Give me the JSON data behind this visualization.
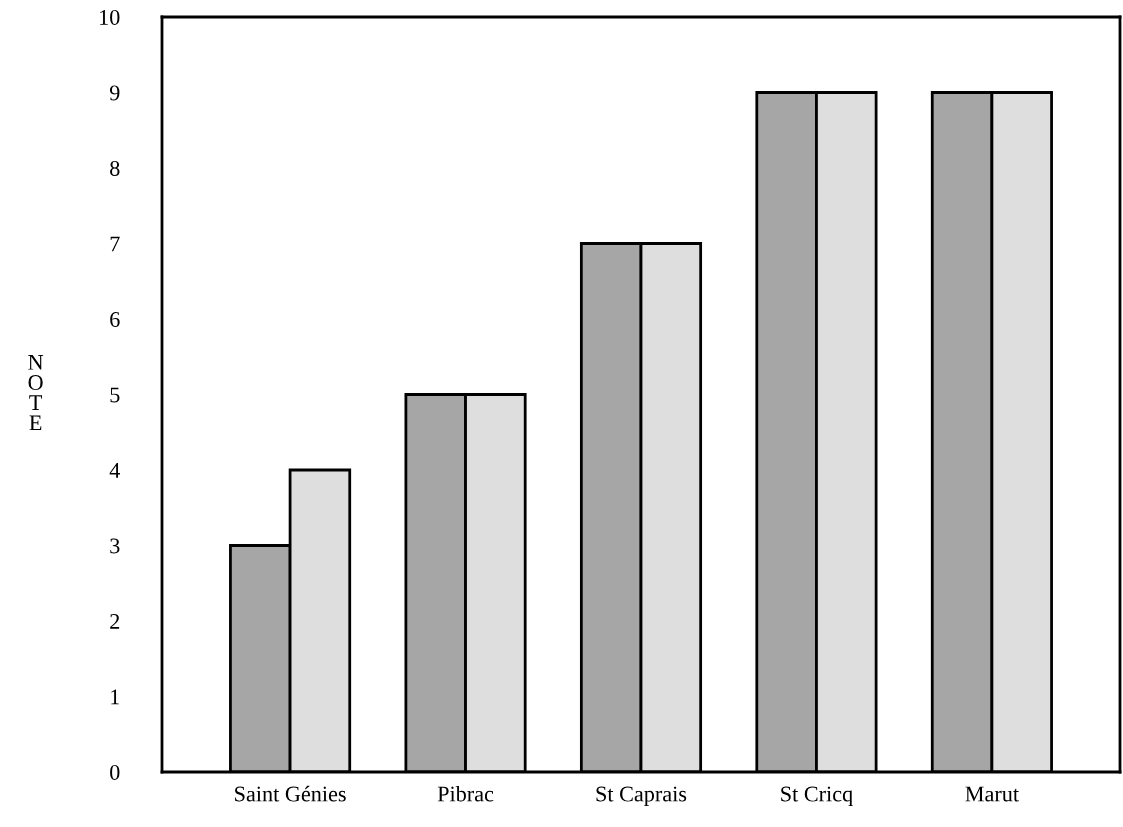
{
  "chart_data": {
    "type": "bar",
    "ylabel": "NOTE",
    "categories": [
      "Saint Génies",
      "Pibrac",
      "St Caprais",
      "St Cricq",
      "Marut"
    ],
    "series": [
      {
        "color": "#a6a6a6",
        "values": [
          3,
          5,
          7,
          9,
          9
        ]
      },
      {
        "color": "#dedede",
        "values": [
          4,
          5,
          7,
          9,
          9
        ]
      }
    ],
    "ylim": [
      0,
      10
    ],
    "yticks": [
      0,
      1,
      2,
      3,
      4,
      5,
      6,
      7,
      8,
      9,
      10
    ],
    "grid": false
  }
}
